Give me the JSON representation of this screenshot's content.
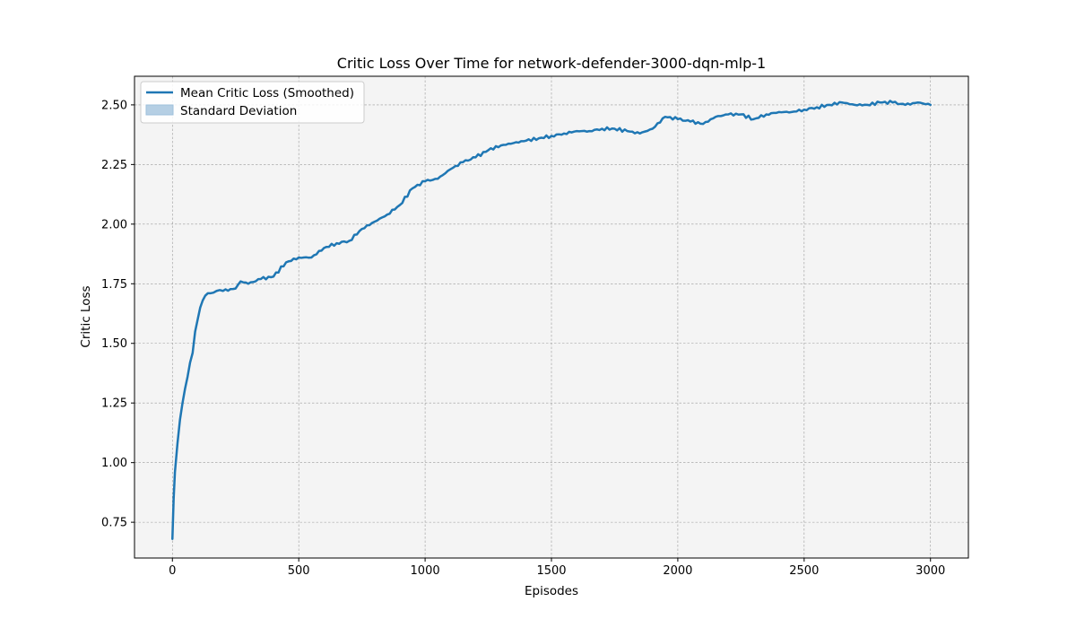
{
  "chart_data": {
    "type": "line",
    "title": "Critic Loss Over Time for network-defender-3000-dqn-mlp-1",
    "xlabel": "Episodes",
    "ylabel": "Critic Loss",
    "xlim": [
      -150,
      3150
    ],
    "ylim": [
      0.6,
      2.62
    ],
    "xticks": [
      0,
      500,
      1000,
      1500,
      2000,
      2500,
      3000
    ],
    "xtick_labels": [
      "0",
      "500",
      "1000",
      "1500",
      "2000",
      "2500",
      "3000"
    ],
    "yticks": [
      0.75,
      1.0,
      1.25,
      1.5,
      1.75,
      2.0,
      2.25,
      2.5
    ],
    "ytick_labels": [
      "0.75",
      "1.00",
      "1.25",
      "1.50",
      "1.75",
      "2.00",
      "2.25",
      "2.50"
    ],
    "grid": true,
    "legend_position": "top-left",
    "series": [
      {
        "name": "Mean Critic Loss (Smoothed)",
        "color": "#1f77b4",
        "x": [
          0,
          5,
          10,
          20,
          30,
          40,
          50,
          60,
          70,
          80,
          90,
          100,
          110,
          120,
          130,
          140,
          150,
          175,
          200,
          250,
          270,
          300,
          350,
          400,
          450,
          500,
          550,
          600,
          650,
          700,
          750,
          800,
          850,
          900,
          950,
          1000,
          1050,
          1100,
          1150,
          1200,
          1250,
          1300,
          1350,
          1400,
          1450,
          1500,
          1550,
          1600,
          1650,
          1700,
          1750,
          1800,
          1850,
          1900,
          1950,
          2000,
          2050,
          2100,
          2150,
          2200,
          2250,
          2300,
          2350,
          2400,
          2450,
          2500,
          2550,
          2600,
          2650,
          2700,
          2750,
          2800,
          2850,
          2900,
          2950,
          3000
        ],
        "values": [
          0.68,
          0.85,
          0.96,
          1.08,
          1.18,
          1.25,
          1.31,
          1.36,
          1.42,
          1.46,
          1.55,
          1.6,
          1.65,
          1.68,
          1.7,
          1.71,
          1.71,
          1.72,
          1.72,
          1.73,
          1.76,
          1.75,
          1.77,
          1.78,
          1.84,
          1.86,
          1.86,
          1.9,
          1.92,
          1.93,
          1.98,
          2.01,
          2.04,
          2.08,
          2.15,
          2.18,
          2.19,
          2.23,
          2.26,
          2.28,
          2.31,
          2.33,
          2.34,
          2.35,
          2.36,
          2.37,
          2.38,
          2.39,
          2.39,
          2.4,
          2.4,
          2.39,
          2.38,
          2.4,
          2.45,
          2.44,
          2.43,
          2.42,
          2.45,
          2.46,
          2.46,
          2.44,
          2.46,
          2.47,
          2.47,
          2.48,
          2.49,
          2.5,
          2.51,
          2.5,
          2.5,
          2.51,
          2.51,
          2.5,
          2.51,
          2.5
        ]
      }
    ],
    "legend": [
      {
        "label": "Mean Critic Loss (Smoothed)",
        "kind": "line",
        "color": "#1f77b4"
      },
      {
        "label": "Standard Deviation",
        "kind": "patch",
        "color": "#b5cfe4"
      }
    ]
  }
}
